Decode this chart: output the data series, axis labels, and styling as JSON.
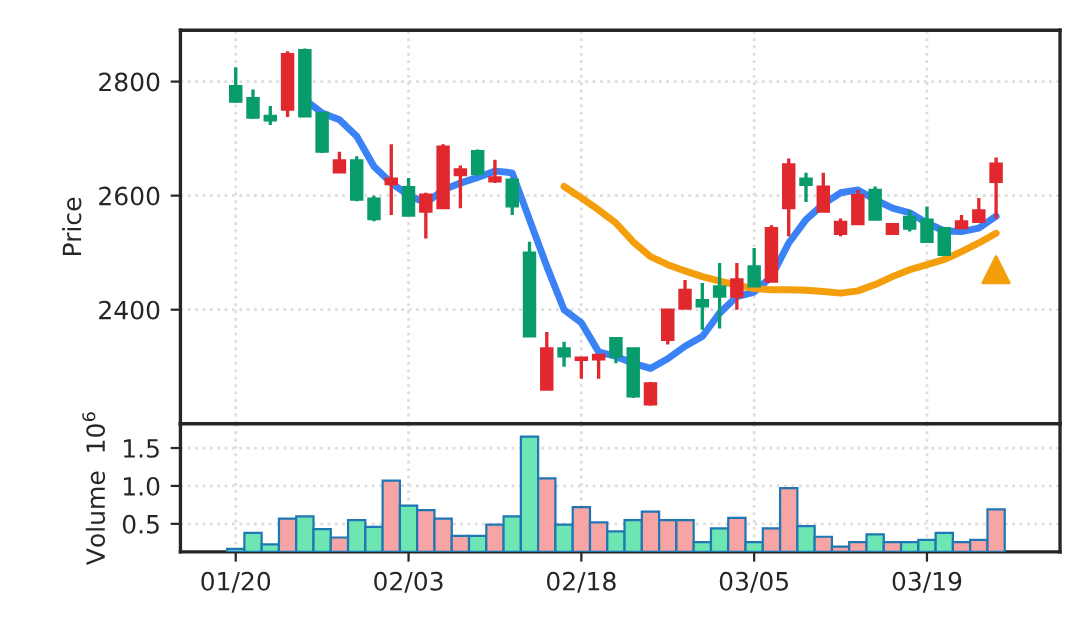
{
  "chart_data": [
    {
      "type": "candlestick",
      "ylabel": "Price",
      "tick_labels": "y",
      "grid": true,
      "ylim": [
        2200,
        2890
      ],
      "yticks": [
        2400,
        2600,
        2800
      ],
      "categories": [
        null,
        null,
        null,
        null,
        null,
        null,
        null,
        null,
        null,
        null,
        null,
        null,
        null,
        null,
        null,
        null,
        null,
        null,
        null,
        null,
        null,
        null,
        null,
        null,
        null,
        null,
        null,
        null,
        null,
        null,
        null,
        null,
        null,
        null,
        null,
        null,
        null,
        null,
        null,
        null,
        null,
        null,
        null,
        null,
        null
      ],
      "ohlc": [
        [
          2792,
          2825,
          2763,
          2765
        ],
        [
          2771,
          2786,
          2735,
          2737
        ],
        [
          2740,
          2757,
          2724,
          2732
        ],
        [
          2751,
          2853,
          2738,
          2848
        ],
        [
          2855,
          2858,
          2739,
          2739
        ],
        [
          2745,
          2745,
          2675,
          2677
        ],
        [
          2641,
          2677,
          2641,
          2662
        ],
        [
          2662,
          2669,
          2590,
          2593
        ],
        [
          2595,
          2600,
          2555,
          2559
        ],
        [
          2620,
          2690,
          2566,
          2630
        ],
        [
          2615,
          2631,
          2565,
          2565
        ],
        [
          2572,
          2605,
          2525,
          2602
        ],
        [
          2578,
          2690,
          2578,
          2686
        ],
        [
          2636,
          2653,
          2578,
          2646
        ],
        [
          2678,
          2681,
          2635,
          2638
        ],
        [
          2625,
          2663,
          2622,
          2632
        ],
        [
          2628,
          2631,
          2566,
          2581
        ],
        [
          2500,
          2519,
          2353,
          2353
        ],
        [
          2260,
          2361,
          2260,
          2332
        ],
        [
          2332,
          2344,
          2300,
          2318
        ],
        [
          2312,
          2316,
          2279,
          2316
        ],
        [
          2313,
          2321,
          2279,
          2321
        ],
        [
          2350,
          2350,
          2306,
          2318
        ],
        [
          2332,
          2332,
          2245,
          2248
        ],
        [
          2234,
          2273,
          2232,
          2271
        ],
        [
          2347,
          2400,
          2339,
          2400
        ],
        [
          2402,
          2452,
          2402,
          2435
        ],
        [
          2417,
          2447,
          2365,
          2406
        ],
        [
          2441,
          2482,
          2367,
          2423
        ],
        [
          2423,
          2482,
          2400,
          2453
        ],
        [
          2476,
          2508,
          2441,
          2441
        ],
        [
          2449,
          2548,
          2449,
          2543
        ],
        [
          2578,
          2665,
          2529,
          2655
        ],
        [
          2630,
          2640,
          2589,
          2619
        ],
        [
          2572,
          2640,
          2572,
          2616
        ],
        [
          2533,
          2560,
          2529,
          2554
        ],
        [
          2550,
          2610,
          2550,
          2601
        ],
        [
          2610,
          2616,
          2558,
          2558
        ],
        [
          2533,
          2550,
          2531,
          2550
        ],
        [
          2563,
          2574,
          2537,
          2542
        ],
        [
          2558,
          2581,
          2519,
          2519
        ],
        [
          2543,
          2543,
          2496,
          2496
        ],
        [
          2543,
          2566,
          2543,
          2555
        ],
        [
          2554,
          2596,
          2554,
          2574
        ],
        [
          2624,
          2667,
          2560,
          2656
        ]
      ],
      "colors": [
        "#089c6c",
        "#089c6c",
        "#089c6c",
        "#e0282e",
        "#089c6c",
        "#089c6c",
        "#e0282e",
        "#089c6c",
        "#089c6c",
        "#e0282e",
        "#089c6c",
        "#e0282e",
        "#e0282e",
        "#e0282e",
        "#089c6c",
        "#e0282e",
        "#089c6c",
        "#089c6c",
        "#e0282e",
        "#089c6c",
        "#e0282e",
        "#e0282e",
        "#089c6c",
        "#089c6c",
        "#e0282e",
        "#e0282e",
        "#e0282e",
        "#089c6c",
        "#089c6c",
        "#e0282e",
        "#089c6c",
        "#e0282e",
        "#e0282e",
        "#089c6c",
        "#e0282e",
        "#e0282e",
        "#e0282e",
        "#089c6c",
        "#e0282e",
        "#089c6c",
        "#089c6c",
        "#089c6c",
        "#e0282e",
        "#e0282e",
        "#e0282e"
      ],
      "series": [
        {
          "type": "line",
          "color": "#3b82f6",
          "values": [
            null,
            null,
            null,
            null,
            2768,
            2745,
            2733,
            2704,
            2651,
            2622,
            2601,
            2587,
            2610,
            2622,
            2632,
            2643,
            2640,
            2558,
            2476,
            2400,
            2377,
            2326,
            2318,
            2306,
            2297,
            2314,
            2336,
            2353,
            2394,
            2423,
            2431,
            2458,
            2517,
            2558,
            2585,
            2605,
            2610,
            2593,
            2578,
            2570,
            2552,
            2538,
            2537,
            2543,
            2564
          ]
        },
        {
          "type": "line",
          "color": "#f59e0b",
          "values": [
            null,
            null,
            null,
            null,
            null,
            null,
            null,
            null,
            null,
            null,
            null,
            null,
            null,
            null,
            null,
            null,
            null,
            null,
            null,
            2616,
            2596,
            2575,
            2552,
            2519,
            2493,
            2479,
            2468,
            2458,
            2450,
            2443,
            2437,
            2435,
            2435,
            2434,
            2432,
            2429,
            2433,
            2444,
            2458,
            2470,
            2479,
            2488,
            2502,
            2517,
            2534
          ]
        },
        {
          "type": "scatter",
          "color": "#f59e0b",
          "marker": "triangle",
          "values": [
            null,
            null,
            null,
            null,
            null,
            null,
            null,
            null,
            null,
            null,
            null,
            null,
            null,
            null,
            null,
            null,
            null,
            null,
            null,
            null,
            null,
            null,
            null,
            null,
            null,
            null,
            null,
            null,
            null,
            null,
            null,
            null,
            null,
            null,
            null,
            null,
            null,
            null,
            null,
            null,
            null,
            null,
            null,
            null,
            2470
          ]
        }
      ]
    },
    {
      "type": "bar",
      "ylabel": "Volume  10$^{6}$",
      "grid": true,
      "ylim": [
        0.13,
        1.82
      ],
      "yticks": [
        0.5,
        {
          "value": 1.0,
          "label": "1.0"
        },
        1.5
      ],
      "categories": [
        "01/20",
        null,
        null,
        null,
        null,
        null,
        null,
        null,
        null,
        null,
        "02/03",
        null,
        null,
        null,
        null,
        null,
        null,
        null,
        null,
        null,
        "02/18",
        null,
        null,
        null,
        null,
        null,
        null,
        null,
        null,
        null,
        "03/05",
        null,
        null,
        null,
        null,
        null,
        null,
        null,
        null,
        null,
        "03/19",
        null,
        null,
        null,
        null
      ],
      "values": [
        0.17,
        0.38,
        0.23,
        0.57,
        0.6,
        0.43,
        0.32,
        0.55,
        0.46,
        1.07,
        0.74,
        0.68,
        0.57,
        0.34,
        0.34,
        0.49,
        0.6,
        1.65,
        1.1,
        0.49,
        0.72,
        0.52,
        0.4,
        0.55,
        0.66,
        0.55,
        0.55,
        0.26,
        0.44,
        0.58,
        0.26,
        0.44,
        0.97,
        0.47,
        0.33,
        0.2,
        0.26,
        0.36,
        0.26,
        0.26,
        0.29,
        0.38,
        0.26,
        0.29,
        0.69
      ],
      "colors": [
        "#6ee6b4",
        "#6ee6b4",
        "#6ee6b4",
        "#f7a4a4",
        "#6ee6b4",
        "#6ee6b4",
        "#f7a4a4",
        "#6ee6b4",
        "#6ee6b4",
        "#f7a4a4",
        "#6ee6b4",
        "#f7a4a4",
        "#f7a4a4",
        "#f7a4a4",
        "#6ee6b4",
        "#f7a4a4",
        "#6ee6b4",
        "#6ee6b4",
        "#f7a4a4",
        "#6ee6b4",
        "#f7a4a4",
        "#f7a4a4",
        "#6ee6b4",
        "#6ee6b4",
        "#f7a4a4",
        "#f7a4a4",
        "#f7a4a4",
        "#6ee6b4",
        "#6ee6b4",
        "#f7a4a4",
        "#6ee6b4",
        "#f7a4a4",
        "#f7a4a4",
        "#6ee6b4",
        "#f7a4a4",
        "#f7a4a4",
        "#f7a4a4",
        "#6ee6b4",
        "#f7a4a4",
        "#6ee6b4",
        "#6ee6b4",
        "#6ee6b4",
        "#f7a4a4",
        "#f7a4a4",
        "#f7a4a4"
      ]
    }
  ]
}
